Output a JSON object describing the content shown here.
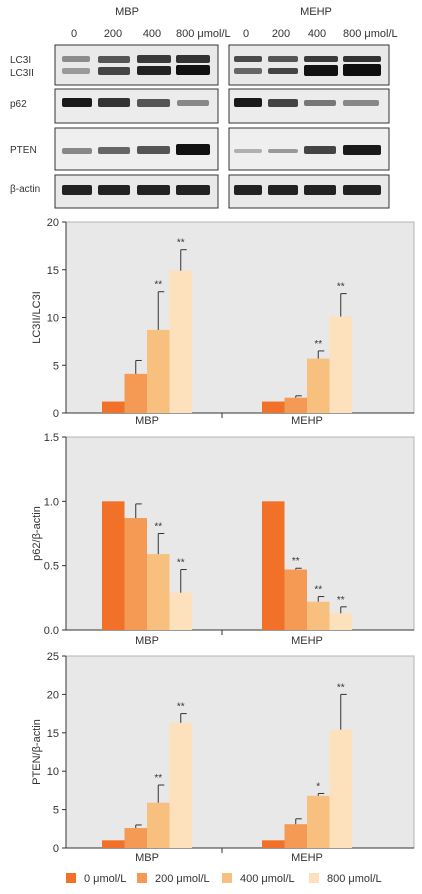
{
  "blot_panel": {
    "groups": [
      {
        "name": "MBP",
        "lanes": [
          "0",
          "200",
          "400",
          "800 μmol/L"
        ]
      },
      {
        "name": "MEHP",
        "lanes": [
          "0",
          "200",
          "400",
          "800 μmol/L"
        ]
      }
    ],
    "rows": [
      {
        "label_lines": [
          "LC3I",
          "LC3II"
        ]
      },
      {
        "label_lines": [
          "p62"
        ]
      },
      {
        "label_lines": [
          "PTEN"
        ]
      },
      {
        "label_lines": [
          "β-actin"
        ]
      }
    ]
  },
  "chart_data": [
    {
      "type": "bar",
      "ylabel": "LC3II/LC3I",
      "ylim": [
        0,
        20
      ],
      "yticks": [
        0,
        5,
        10,
        15,
        20
      ],
      "categories": [
        "MBP",
        "MEHP"
      ],
      "series": [
        {
          "name": "0 μmol/L",
          "values": [
            1.2,
            1.2
          ],
          "errors": [
            0,
            0
          ],
          "sig": [
            "",
            ""
          ]
        },
        {
          "name": "200 μmol/L",
          "values": [
            4.1,
            1.6
          ],
          "errors": [
            1.4,
            0.2
          ],
          "sig": [
            "",
            ""
          ]
        },
        {
          "name": "400 μmol/L",
          "values": [
            8.7,
            5.7
          ],
          "errors": [
            4.0,
            0.8
          ],
          "sig": [
            "**",
            "**"
          ]
        },
        {
          "name": "800 μmol/L",
          "values": [
            14.9,
            10.1
          ],
          "errors": [
            2.2,
            2.4
          ],
          "sig": [
            "**",
            "**"
          ]
        }
      ],
      "grid": false
    },
    {
      "type": "bar",
      "ylabel": "p62/β-actin",
      "ylim": [
        0,
        1.5
      ],
      "yticks": [
        0.0,
        0.5,
        1.0,
        1.5
      ],
      "ytick_labels": [
        "0.0",
        "0.5",
        "1.0",
        "1.5"
      ],
      "categories": [
        "MBP",
        "MEHP"
      ],
      "series": [
        {
          "name": "0 μmol/L",
          "values": [
            1.0,
            1.0
          ],
          "errors": [
            0,
            0
          ],
          "sig": [
            "",
            ""
          ]
        },
        {
          "name": "200 μmol/L",
          "values": [
            0.87,
            0.47
          ],
          "errors": [
            0.11,
            0.01
          ],
          "sig": [
            "",
            "**"
          ]
        },
        {
          "name": "400 μmol/L",
          "values": [
            0.59,
            0.22
          ],
          "errors": [
            0.16,
            0.04
          ],
          "sig": [
            "**",
            "**"
          ]
        },
        {
          "name": "800 μmol/L",
          "values": [
            0.29,
            0.13
          ],
          "errors": [
            0.18,
            0.05
          ],
          "sig": [
            "**",
            "**"
          ]
        }
      ],
      "grid": false
    },
    {
      "type": "bar",
      "ylabel": "PTEN/β-actin",
      "ylim": [
        0,
        25
      ],
      "yticks": [
        0,
        5,
        10,
        15,
        20,
        25
      ],
      "categories": [
        "MBP",
        "MEHP"
      ],
      "series": [
        {
          "name": "0 μmol/L",
          "values": [
            1.0,
            1.0
          ],
          "errors": [
            0,
            0
          ],
          "sig": [
            "",
            ""
          ]
        },
        {
          "name": "200 μmol/L",
          "values": [
            2.6,
            3.1
          ],
          "errors": [
            0.4,
            0.7
          ],
          "sig": [
            "",
            ""
          ]
        },
        {
          "name": "400 μmol/L",
          "values": [
            5.9,
            6.8
          ],
          "errors": [
            2.3,
            0.3
          ],
          "sig": [
            "**",
            "*"
          ]
        },
        {
          "name": "800 μmol/L",
          "values": [
            16.3,
            15.4
          ],
          "errors": [
            1.2,
            4.6
          ],
          "sig": [
            "**",
            "**"
          ]
        }
      ],
      "grid": false
    }
  ],
  "legend": {
    "items": [
      "0 μmol/L",
      "200 μmol/L",
      "400 μmol/L",
      "800 μmol/L"
    ]
  },
  "colors": {
    "series": [
      "#f07127",
      "#f59a55",
      "#f8c07f",
      "#fde1bc"
    ],
    "plot_background": "#e8e8e8",
    "axis": "#333333"
  }
}
